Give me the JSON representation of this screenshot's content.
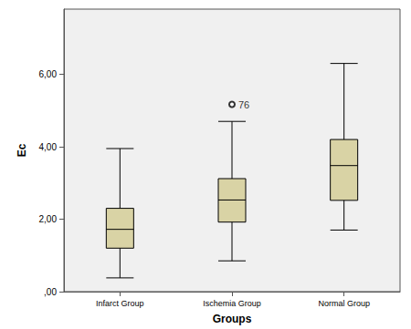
{
  "chart_data": {
    "type": "boxplot",
    "x_label": "Groups",
    "y_label": "Ec",
    "categories": [
      "Infarct Group",
      "Ischemia Group",
      "Normal Group"
    ],
    "boxes": [
      [
        0.38,
        1.2,
        1.72,
        2.3,
        3.95
      ],
      [
        0.85,
        1.92,
        2.53,
        3.12,
        4.7
      ],
      [
        1.7,
        2.52,
        3.48,
        4.2,
        6.3
      ]
    ],
    "outliers": [
      {
        "category": "Ischemia Group",
        "value": 5.17,
        "label": "76"
      }
    ],
    "color": "#d9d3a5",
    "ylim": [
      0,
      7.8
    ],
    "yticks": [
      {
        "value": 0,
        "label": ",00"
      },
      {
        "value": 2,
        "label": "2,00"
      },
      {
        "value": 4,
        "label": "4,00"
      },
      {
        "value": 6,
        "label": "6,00"
      }
    ],
    "grid": false
  }
}
